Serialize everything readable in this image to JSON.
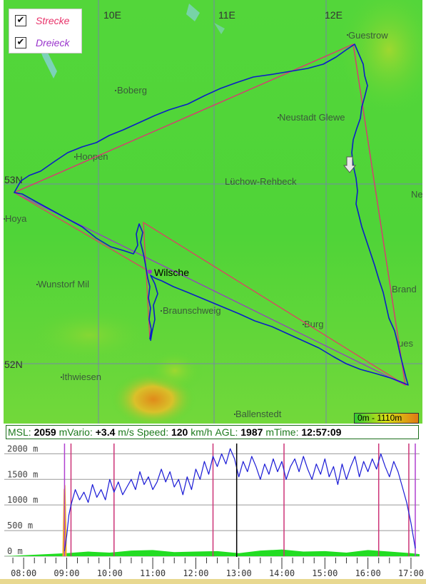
{
  "map": {
    "legend": {
      "items": [
        {
          "label": "Strecke",
          "checked": true,
          "color": "#e8336a"
        },
        {
          "label": "Dreieck",
          "checked": true,
          "color": "#9933cc"
        }
      ]
    },
    "grid_labels": {
      "lon": [
        "10E",
        "11E",
        "12E"
      ],
      "lat": [
        "53N",
        "52N"
      ]
    },
    "places": [
      "Guestrow",
      "Boberg",
      "Neustadt Glewe",
      "Hoopen",
      "Lüchow-Rehbeck",
      "Ne",
      "Hoya",
      "Wilsche",
      "Wunstorf Mil",
      "Braunschweig",
      "Brand",
      "Burg",
      "ues",
      "Ithwiesen",
      "Ballenstedt"
    ],
    "current_place": "Wilsche",
    "scale_label": "0m - 1110m",
    "colors": {
      "route": "#e8336a",
      "triangle": "#9933cc",
      "track": "#0a1ec8",
      "terrain_low": "#3fd83f",
      "terrain_high": "#e08a1a"
    }
  },
  "status": {
    "msl_label": "MSL:",
    "msl_value": "2059",
    "msl_unit": "m",
    "vario_label": "Vario:",
    "vario_value": "+3.4",
    "vario_unit": "m/s",
    "speed_label": "Speed:",
    "speed_value": "120",
    "speed_unit": "km/h",
    "agl_label": "AGL:",
    "agl_value": "1987",
    "agl_unit": "m",
    "time_label": "Time:",
    "time_value": "12:57:09"
  },
  "chart_data": {
    "type": "line",
    "title": "",
    "y_tick_labels": [
      "0 m",
      "500 m",
      "1000 m",
      "1500 m",
      "2000 m"
    ],
    "y_ticks": [
      0,
      500,
      1000,
      1500,
      2000
    ],
    "ylim": [
      0,
      2200
    ],
    "x_tick_labels": [
      "08:00",
      "09:00",
      "10:00",
      "11:00",
      "12:00",
      "13:00",
      "14:00",
      "15:00",
      "16:00",
      "17:00"
    ],
    "x_ticks_hours": [
      8,
      9,
      10,
      11,
      12,
      13,
      14,
      15,
      16,
      17
    ],
    "xlim_hours": [
      7.55,
      17.2
    ],
    "grid": true,
    "cursor_hours": 12.95,
    "turnpoint_marker_hours": [
      9.1,
      10.1,
      12.4,
      14.05,
      16.25,
      16.95
    ],
    "triangle_marker_hours": [
      8.95,
      17.1
    ],
    "series": [
      {
        "kind": "altitude_msl",
        "color": "#1a1ad6",
        "x": [
          8.95,
          9.0,
          9.05,
          9.1,
          9.2,
          9.3,
          9.4,
          9.5,
          9.6,
          9.7,
          9.8,
          9.9,
          10.0,
          10.1,
          10.2,
          10.3,
          10.4,
          10.5,
          10.6,
          10.7,
          10.8,
          10.9,
          11.0,
          11.1,
          11.2,
          11.3,
          11.4,
          11.5,
          11.6,
          11.7,
          11.8,
          11.9,
          12.0,
          12.1,
          12.2,
          12.3,
          12.4,
          12.5,
          12.6,
          12.7,
          12.8,
          12.9,
          13.0,
          13.1,
          13.2,
          13.3,
          13.4,
          13.5,
          13.6,
          13.7,
          13.8,
          13.9,
          14.0,
          14.1,
          14.2,
          14.3,
          14.4,
          14.5,
          14.6,
          14.7,
          14.8,
          14.9,
          15.0,
          15.1,
          15.2,
          15.3,
          15.4,
          15.5,
          15.6,
          15.7,
          15.8,
          15.9,
          16.0,
          16.1,
          16.2,
          16.3,
          16.4,
          16.5,
          16.6,
          16.7,
          16.8,
          16.9,
          17.0,
          17.05,
          17.1
        ],
        "y": [
          100,
          400,
          800,
          1000,
          1300,
          1100,
          1250,
          1050,
          1400,
          1150,
          1300,
          1100,
          1500,
          1250,
          1450,
          1200,
          1350,
          1500,
          1300,
          1650,
          1400,
          1550,
          1300,
          1450,
          1700,
          1450,
          1650,
          1350,
          1500,
          1200,
          1550,
          1300,
          1700,
          1500,
          1850,
          1600,
          1950,
          1750,
          2000,
          1800,
          2100,
          1900,
          1550,
          1850,
          1650,
          1950,
          1750,
          1500,
          1800,
          1600,
          1900,
          1650,
          1850,
          1500,
          1750,
          1900,
          1650,
          1950,
          1700,
          1500,
          1800,
          1600,
          1900,
          1550,
          1750,
          1400,
          1800,
          1500,
          1750,
          1950,
          1550,
          1850,
          1650,
          1900,
          1700,
          2000,
          1750,
          1550,
          1850,
          1650,
          1350,
          1050,
          650,
          400,
          150
        ]
      },
      {
        "kind": "terrain",
        "color": "#22dd22",
        "x": [
          7.55,
          9.0,
          9.5,
          10.0,
          10.5,
          11.0,
          11.5,
          12.0,
          12.5,
          13.0,
          13.5,
          14.0,
          14.5,
          15.0,
          15.5,
          16.0,
          16.5,
          17.0,
          17.2
        ],
        "y": [
          0,
          60,
          90,
          70,
          110,
          120,
          80,
          90,
          100,
          60,
          110,
          130,
          90,
          100,
          70,
          120,
          90,
          60,
          40
        ]
      },
      {
        "kind": "engine",
        "color": "#f0b020",
        "x": [
          8.9,
          8.93,
          8.97,
          9.0
        ],
        "y": [
          0,
          1300,
          1400,
          300
        ]
      }
    ]
  }
}
